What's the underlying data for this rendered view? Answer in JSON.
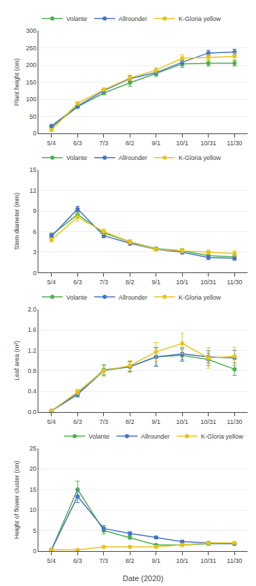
{
  "chart_data": [
    {
      "type": "line",
      "categories": [
        "5/4",
        "6/3",
        "7/3",
        "8/2",
        "9/1",
        "10/1",
        "10/31",
        "11/30"
      ],
      "series": [
        {
          "name": "Volante",
          "color": "#4CAF50",
          "values": [
            18,
            78,
            118,
            148,
            175,
            203,
            205,
            205
          ],
          "errors": [
            2,
            4,
            5,
            10,
            8,
            10,
            8,
            8
          ]
        },
        {
          "name": "Allrounder",
          "color": "#4472C4",
          "values": [
            22,
            80,
            125,
            160,
            178,
            208,
            235,
            238
          ],
          "errors": [
            2,
            4,
            5,
            8,
            8,
            10,
            8,
            8
          ]
        },
        {
          "name": "K-Gloria yellow",
          "color": "#E8C41A",
          "values": [
            10,
            88,
            128,
            162,
            185,
            220,
            222,
            225
          ],
          "errors": [
            2,
            5,
            5,
            8,
            8,
            10,
            8,
            10
          ]
        }
      ],
      "ylabel": "Plant height (cm)",
      "ylim": [
        0,
        300
      ],
      "yticks": [
        0,
        50,
        100,
        150,
        200,
        250,
        300
      ],
      "grid": true,
      "legend": "upper left",
      "marker": "circle"
    },
    {
      "type": "line",
      "categories": [
        "5/4",
        "6/3",
        "7/3",
        "8/2",
        "9/1",
        "10/1",
        "10/31",
        "11/30"
      ],
      "series": [
        {
          "name": "Volante",
          "color": "#4CAF50",
          "values": [
            5.5,
            8.5,
            5.8,
            4.5,
            3.5,
            3.2,
            2.5,
            2.3
          ],
          "errors": [
            0.3,
            0.4,
            0.3,
            0.3,
            0.2,
            0.3,
            0.3,
            0.3
          ]
        },
        {
          "name": "Allrounder",
          "color": "#4472C4",
          "values": [
            5.3,
            9.3,
            5.4,
            4.3,
            3.4,
            3.0,
            2.2,
            2.1
          ],
          "errors": [
            0.3,
            0.4,
            0.3,
            0.3,
            0.2,
            0.3,
            0.3,
            0.3
          ]
        },
        {
          "name": "K-Gloria yellow",
          "color": "#E8C41A",
          "values": [
            4.8,
            8.1,
            6.0,
            4.5,
            3.4,
            3.2,
            3.0,
            2.8
          ],
          "errors": [
            0.3,
            0.6,
            0.4,
            0.3,
            0.2,
            0.3,
            0.3,
            0.4
          ]
        }
      ],
      "ylabel": "Stem diameter (mm)",
      "ylim": [
        0,
        15
      ],
      "yticks": [
        0,
        3,
        6,
        9,
        12,
        15
      ],
      "grid": true,
      "legend": "upper left",
      "marker": "circle"
    },
    {
      "type": "line",
      "categories": [
        "5/4",
        "6/3",
        "7/3",
        "8/2",
        "9/1",
        "10/1",
        "10/31",
        "11/30"
      ],
      "series": [
        {
          "name": "Volante",
          "color": "#4CAF50",
          "values": [
            0.02,
            0.36,
            0.82,
            0.88,
            1.07,
            1.1,
            1.02,
            0.83
          ],
          "errors": [
            0.01,
            0.05,
            0.1,
            0.1,
            0.18,
            0.12,
            0.12,
            0.12
          ]
        },
        {
          "name": "Allrounder",
          "color": "#4472C4",
          "values": [
            0.02,
            0.34,
            0.8,
            0.88,
            1.07,
            1.13,
            1.07,
            1.05
          ],
          "errors": [
            0.01,
            0.05,
            0.1,
            0.1,
            0.18,
            0.12,
            0.12,
            0.15
          ]
        },
        {
          "name": "K-Gloria yellow",
          "color": "#E8C41A",
          "values": [
            0.02,
            0.39,
            0.8,
            0.9,
            1.17,
            1.33,
            1.05,
            1.08
          ],
          "errors": [
            0.01,
            0.05,
            0.1,
            0.1,
            0.18,
            0.2,
            0.2,
            0.18
          ]
        }
      ],
      "ylabel": "Leaf area (m²)",
      "ylim": [
        0.0,
        2.0
      ],
      "yticks": [
        {
          "value": 0.0,
          "label": "0.0"
        },
        0.4,
        0.8,
        1.2,
        1.6,
        {
          "value": 2.0,
          "label": "2.0"
        }
      ],
      "grid": true,
      "legend": "upper left",
      "marker": "circle"
    },
    {
      "type": "line",
      "categories": [
        "5/4",
        "6/3",
        "7/3",
        "8/2",
        "9/1",
        "10/1",
        "10/31",
        "11/30"
      ],
      "series": [
        {
          "name": "Volante",
          "color": "#4CAF50",
          "values": [
            0.3,
            15.0,
            5.0,
            3.3,
            1.5,
            1.5,
            1.8,
            1.8
          ],
          "errors": [
            0.1,
            2.0,
            0.8,
            0.4,
            0.2,
            0.3,
            0.3,
            0.3
          ]
        },
        {
          "name": "Allrounder",
          "color": "#4472C4",
          "values": [
            0.3,
            13.3,
            5.5,
            4.3,
            3.3,
            2.3,
            2.0,
            1.8
          ],
          "errors": [
            0.1,
            1.5,
            0.7,
            0.4,
            0.3,
            0.3,
            0.3,
            0.3
          ]
        },
        {
          "name": "K-Gloria yellow",
          "color": "#E8C41A",
          "values": [
            0.3,
            0.3,
            1.0,
            1.0,
            1.0,
            1.5,
            2.0,
            2.0
          ],
          "errors": [
            0.1,
            0.1,
            0.2,
            0.2,
            0.2,
            0.4,
            0.3,
            0.3
          ]
        }
      ],
      "xlabel": "Date (2020)",
      "ylabel": "Height of flower cluster (cm)",
      "ylim": [
        0,
        25
      ],
      "yticks": [
        0,
        5,
        10,
        15,
        20,
        25
      ],
      "grid": true,
      "legend": "upper right",
      "marker": "circle"
    }
  ]
}
